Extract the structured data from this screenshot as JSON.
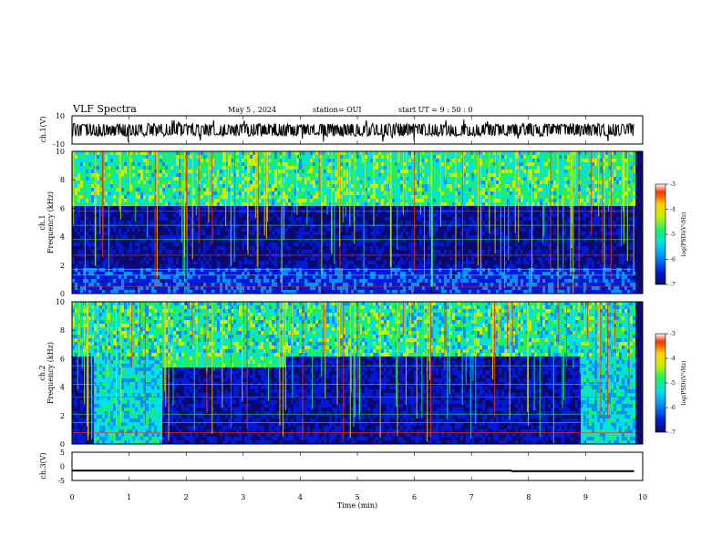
{
  "header": {
    "title": "VLF Spectra",
    "date": "May 5 , 2024",
    "station": "station= OUI",
    "start": "start  UT =   9 : 50 : 0"
  },
  "colors": {
    "ramp": [
      "#0a0a6e",
      "#0018d8",
      "#0090ff",
      "#00e0e8",
      "#20f060",
      "#c8f000",
      "#ffd000",
      "#ff3000",
      "#ffffff"
    ]
  },
  "chart_data": [
    {
      "type": "line",
      "name": "ch1-waveform",
      "ylabel": "ch.1(V)",
      "ylim": [
        -10,
        10
      ],
      "yticks": [
        "10",
        "-10"
      ],
      "xlim": [
        0,
        10
      ]
    },
    {
      "type": "heatmap",
      "name": "ch1-spectrogram",
      "ylabel": "ch.1 Frequency (kHz)",
      "ylim": [
        0,
        10
      ],
      "yticks": [
        "0",
        "2",
        "4",
        "6",
        "8",
        "10"
      ],
      "xlim": [
        0,
        10
      ],
      "colorbar": {
        "label": "log(PSD)(V²/Hz)",
        "ticks": [
          "-3",
          "-4",
          "-5",
          "-6",
          "-7"
        ],
        "range": [
          -7,
          -3
        ]
      }
    },
    {
      "type": "heatmap",
      "name": "ch2-spectrogram",
      "ylabel": "ch.2 Frequency (kHz)",
      "ylim": [
        0,
        10
      ],
      "yticks": [
        "0",
        "2",
        "4",
        "6",
        "8",
        "10"
      ],
      "xlim": [
        0,
        10
      ],
      "colorbar": {
        "label": "log(PSD)(V²/Hz)",
        "ticks": [
          "-3",
          "-4",
          "-5",
          "-6",
          "-7"
        ],
        "range": [
          -7,
          -3
        ]
      }
    },
    {
      "type": "line",
      "name": "ch3-signal",
      "ylabel": "ch.3(V)",
      "ylim": [
        -5,
        5
      ],
      "yticks": [
        "5",
        "0",
        "-5"
      ],
      "xlabel": "Time (min)",
      "xticks": [
        "0",
        "1",
        "2",
        "3",
        "4",
        "5",
        "6",
        "7",
        "8",
        "9",
        "10"
      ],
      "xlim": [
        0,
        10
      ],
      "series": [
        {
          "x": [
            0,
            7.7
          ],
          "y": [
            -1.5,
            -1.5
          ]
        },
        {
          "x": [
            7.7,
            9.85
          ],
          "y": [
            -1.7,
            -1.7
          ]
        }
      ]
    }
  ]
}
